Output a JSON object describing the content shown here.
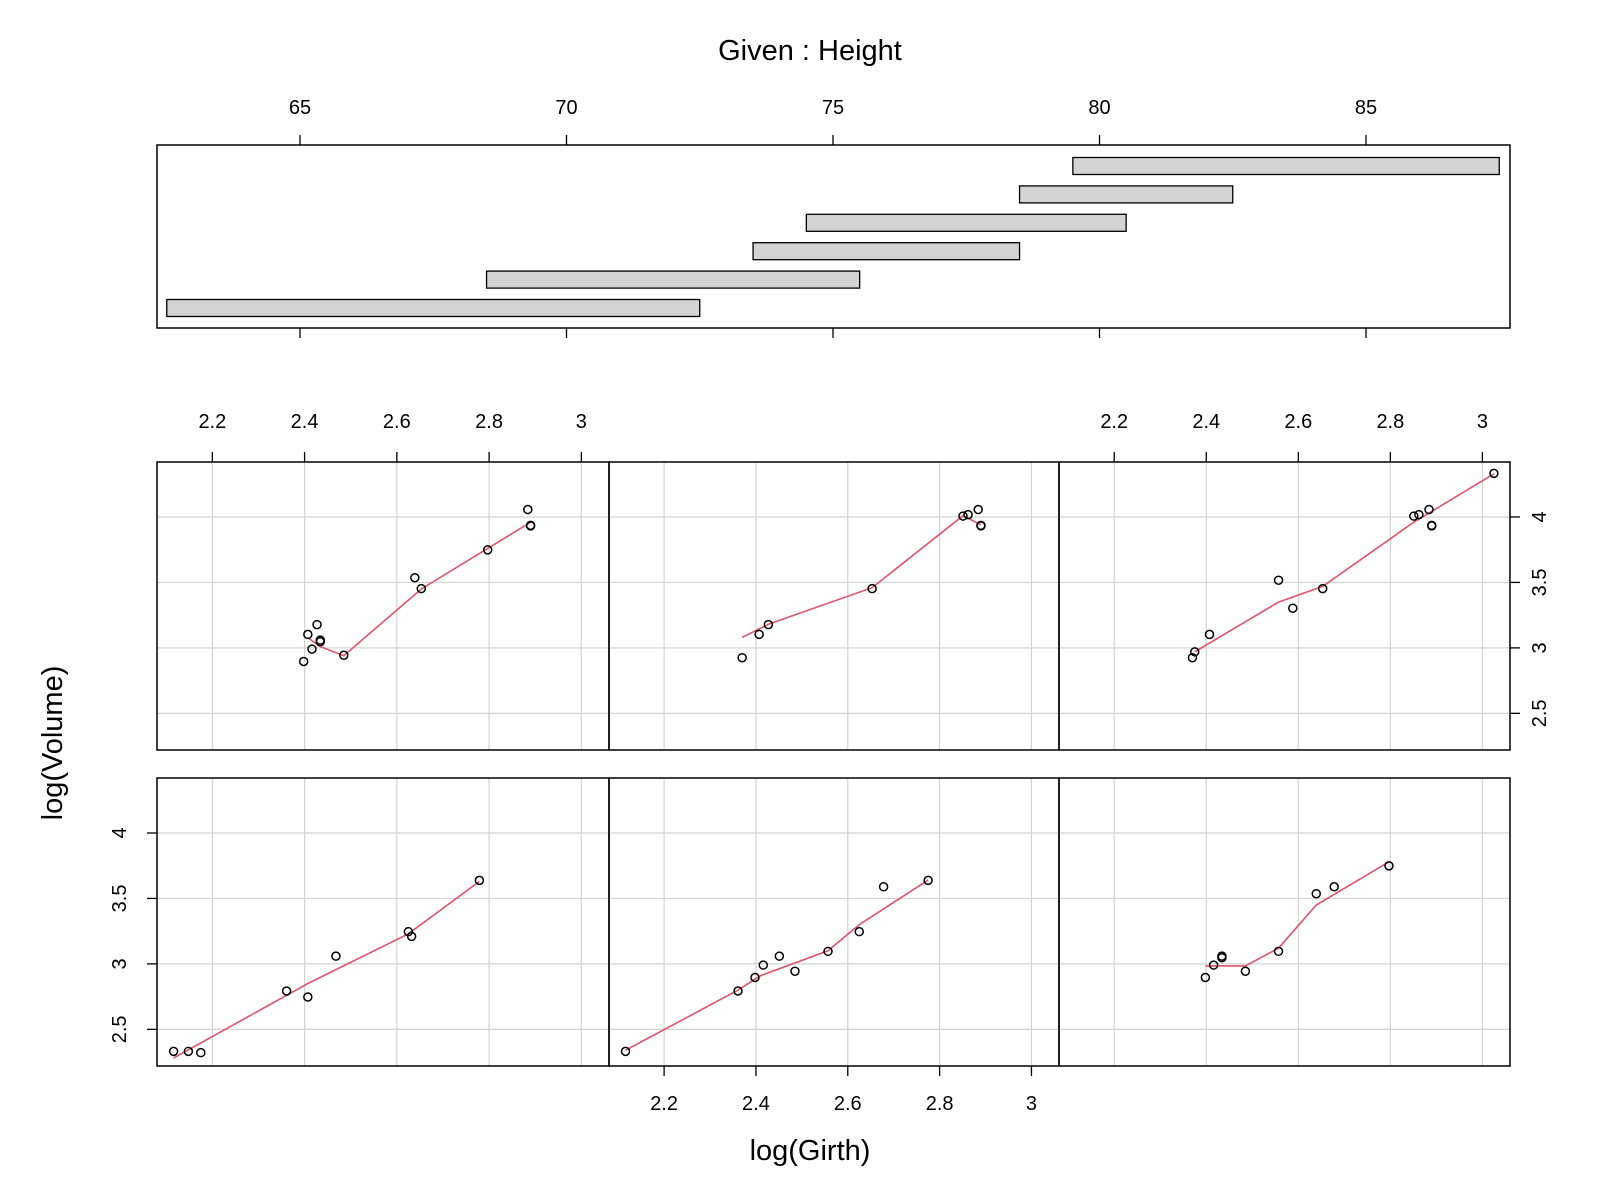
{
  "chart_data": {
    "type": "scatter",
    "title": "Given : Height",
    "xlabel": "log(Girth)",
    "ylabel": "log(Volume)",
    "colors": {
      "smooth": "#DF536B",
      "grid": "#D3D3D3",
      "shingle_fill": "#D3D3D3",
      "points": "#000000"
    },
    "given": {
      "ticks": [
        65,
        70,
        75,
        80,
        85
      ],
      "intervals": [
        {
          "low": 62.5,
          "high": 72.5
        },
        {
          "low": 68.5,
          "high": 75.5
        },
        {
          "low": 73.5,
          "high": 78.5
        },
        {
          "low": 74.5,
          "high": 80.5
        },
        {
          "low": 78.5,
          "high": 82.5
        },
        {
          "low": 79.5,
          "high": 87.5
        }
      ]
    },
    "x_ticks": [
      2.2,
      2.4,
      2.6,
      2.8,
      3.0
    ],
    "y_ticks": [
      2.5,
      3.0,
      3.5,
      4.0
    ],
    "xlim": [
      2.08,
      3.06
    ],
    "ylim": [
      2.22,
      4.42
    ],
    "panels": [
      {
        "interval": 1,
        "points": [
          [
            2.116,
            2.332
          ],
          [
            2.148,
            2.332
          ],
          [
            2.175,
            2.322
          ],
          [
            2.361,
            2.793
          ],
          [
            2.407,
            2.747
          ],
          [
            2.468,
            3.059
          ],
          [
            2.625,
            3.246
          ],
          [
            2.632,
            3.21
          ],
          [
            2.779,
            3.638
          ]
        ],
        "smooth": [
          [
            2.116,
            2.28
          ],
          [
            2.361,
            2.76
          ],
          [
            2.407,
            2.85
          ],
          [
            2.625,
            3.23
          ],
          [
            2.779,
            3.63
          ]
        ]
      },
      {
        "interval": 2,
        "points": [
          [
            2.116,
            2.332
          ],
          [
            2.361,
            2.793
          ],
          [
            2.398,
            2.896
          ],
          [
            2.416,
            2.991
          ],
          [
            2.451,
            3.059
          ],
          [
            2.485,
            2.944
          ],
          [
            2.557,
            3.096
          ],
          [
            2.625,
            3.246
          ],
          [
            2.678,
            3.589
          ],
          [
            2.775,
            3.638
          ]
        ],
        "smooth": [
          [
            2.116,
            2.34
          ],
          [
            2.361,
            2.8
          ],
          [
            2.41,
            2.91
          ],
          [
            2.557,
            3.1
          ],
          [
            2.625,
            3.3
          ],
          [
            2.775,
            3.64
          ]
        ]
      },
      {
        "interval": 3,
        "points": [
          [
            2.398,
            2.896
          ],
          [
            2.416,
            2.991
          ],
          [
            2.434,
            3.047
          ],
          [
            2.434,
            3.059
          ],
          [
            2.485,
            2.944
          ],
          [
            2.557,
            3.096
          ],
          [
            2.639,
            3.536
          ],
          [
            2.678,
            3.589
          ],
          [
            2.797,
            3.749
          ]
        ],
        "smooth": [
          [
            2.398,
            2.985
          ],
          [
            2.485,
            2.985
          ],
          [
            2.557,
            3.12
          ],
          [
            2.639,
            3.45
          ],
          [
            2.797,
            3.78
          ]
        ]
      },
      {
        "interval": 4,
        "points": [
          [
            2.398,
            2.896
          ],
          [
            2.416,
            2.991
          ],
          [
            2.427,
            3.178
          ],
          [
            2.407,
            3.103
          ],
          [
            2.434,
            3.047
          ],
          [
            2.434,
            3.059
          ],
          [
            2.485,
            2.944
          ],
          [
            2.639,
            3.536
          ],
          [
            2.653,
            3.453
          ],
          [
            2.797,
            3.749
          ],
          [
            2.884,
            4.057
          ],
          [
            2.89,
            3.932
          ],
          [
            2.89,
            3.936
          ]
        ],
        "smooth": [
          [
            2.41,
            3.07
          ],
          [
            2.434,
            3.01
          ],
          [
            2.485,
            2.94
          ],
          [
            2.653,
            3.45
          ],
          [
            2.797,
            3.76
          ],
          [
            2.89,
            3.96
          ]
        ]
      },
      {
        "interval": 5,
        "points": [
          [
            2.37,
            2.925
          ],
          [
            2.407,
            3.103
          ],
          [
            2.427,
            3.178
          ],
          [
            2.653,
            3.453
          ],
          [
            2.851,
            4.007
          ],
          [
            2.862,
            4.018
          ],
          [
            2.884,
            4.057
          ],
          [
            2.89,
            3.932
          ],
          [
            2.89,
            3.936
          ]
        ],
        "smooth": [
          [
            2.37,
            3.08
          ],
          [
            2.427,
            3.18
          ],
          [
            2.653,
            3.46
          ],
          [
            2.851,
            4.01
          ],
          [
            2.89,
            3.94
          ]
        ]
      },
      {
        "interval": 6,
        "points": [
          [
            2.37,
            2.925
          ],
          [
            2.375,
            2.97
          ],
          [
            2.407,
            3.103
          ],
          [
            2.557,
            3.517
          ],
          [
            2.588,
            3.303
          ],
          [
            2.653,
            3.453
          ],
          [
            2.851,
            4.007
          ],
          [
            2.862,
            4.018
          ],
          [
            2.884,
            4.057
          ],
          [
            2.89,
            3.932
          ],
          [
            2.89,
            3.936
          ],
          [
            3.025,
            4.333
          ]
        ],
        "smooth": [
          [
            2.375,
            2.97
          ],
          [
            2.557,
            3.35
          ],
          [
            2.653,
            3.47
          ],
          [
            2.851,
            3.96
          ],
          [
            3.025,
            4.33
          ]
        ]
      }
    ]
  }
}
